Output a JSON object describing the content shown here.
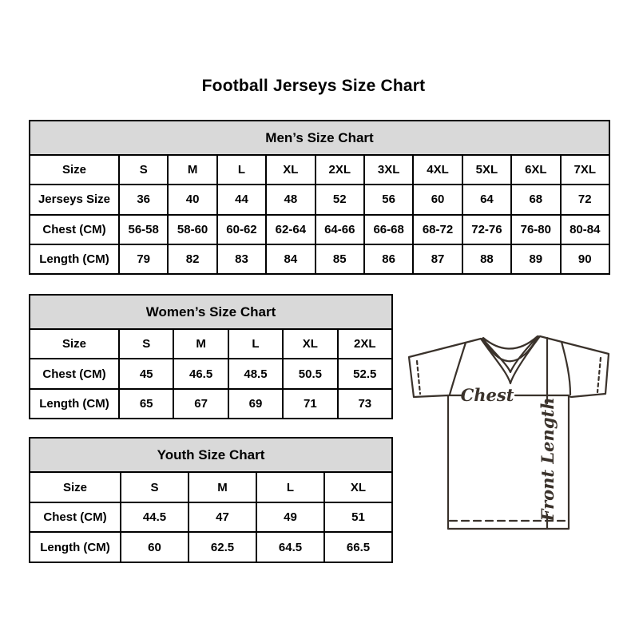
{
  "page_title": "Football Jerseys Size Chart",
  "tables": {
    "mens": {
      "id": "mens",
      "title": "Men’s Size Chart",
      "rows": [
        [
          "Size",
          "S",
          "M",
          "L",
          "XL",
          "2XL",
          "3XL",
          "4XL",
          "5XL",
          "6XL",
          "7XL"
        ],
        [
          "Jerseys Size",
          "36",
          "40",
          "44",
          "48",
          "52",
          "56",
          "60",
          "64",
          "68",
          "72"
        ],
        [
          "Chest (CM)",
          "56-58",
          "58-60",
          "60-62",
          "62-64",
          "64-66",
          "66-68",
          "68-72",
          "72-76",
          "76-80",
          "80-84"
        ],
        [
          "Length (CM)",
          "79",
          "82",
          "83",
          "84",
          "85",
          "86",
          "87",
          "88",
          "89",
          "90"
        ]
      ]
    },
    "womens": {
      "id": "womens",
      "title": "Women’s Size Chart",
      "rows": [
        [
          "Size",
          "S",
          "M",
          "L",
          "XL",
          "2XL"
        ],
        [
          "Chest (CM)",
          "45",
          "46.5",
          "48.5",
          "50.5",
          "52.5"
        ],
        [
          "Length (CM)",
          "65",
          "67",
          "69",
          "71",
          "73"
        ]
      ]
    },
    "youth": {
      "id": "youth",
      "title": "Youth Size Chart",
      "rows": [
        [
          "Size",
          "S",
          "M",
          "L",
          "XL"
        ],
        [
          "Chest (CM)",
          "44.5",
          "47",
          "49",
          "51"
        ],
        [
          "Length (CM)",
          "60",
          "62.5",
          "64.5",
          "66.5"
        ]
      ]
    }
  },
  "diagram": {
    "chest_label": "Chest",
    "front_length_label": "Front Length"
  },
  "colors": {
    "background": "#ffffff",
    "header_bg": "#d9d9d9",
    "table_border": "#000000",
    "text": "#000000",
    "drawing_stroke": "#3a322b"
  }
}
